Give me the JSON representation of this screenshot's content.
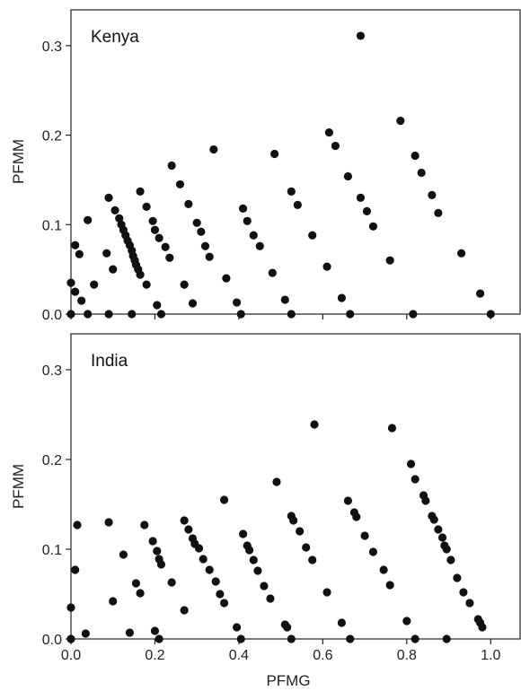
{
  "chart_data": [
    {
      "type": "scatter",
      "title": "Kenya",
      "xlabel": "",
      "ylabel": "PFMM",
      "xlim": [
        0,
        1.07
      ],
      "ylim": [
        0,
        0.34
      ],
      "x_ticks": [
        0.0,
        0.2,
        0.4,
        0.6,
        0.8,
        1.0
      ],
      "y_ticks": [
        "0.0",
        "0.1",
        "0.2",
        "0.3"
      ],
      "y_tick_values": [
        0.0,
        0.1,
        0.2,
        0.3
      ],
      "grid": false,
      "marker_color": "#111111",
      "series": [
        {
          "points": [
            [
              0.0,
              0.035
            ],
            [
              0.0,
              0.0
            ],
            [
              0.01,
              0.077
            ],
            [
              0.01,
              0.025
            ],
            [
              0.02,
              0.067
            ],
            [
              0.025,
              0.015
            ],
            [
              0.04,
              0.105
            ],
            [
              0.04,
              0.0
            ],
            [
              0.055,
              0.033
            ],
            [
              0.085,
              0.068
            ],
            [
              0.09,
              0.13
            ],
            [
              0.09,
              0.0
            ],
            [
              0.1,
              0.05
            ],
            [
              0.105,
              0.116
            ],
            [
              0.115,
              0.107
            ],
            [
              0.12,
              0.1
            ],
            [
              0.125,
              0.094
            ],
            [
              0.13,
              0.088
            ],
            [
              0.135,
              0.082
            ],
            [
              0.14,
              0.077
            ],
            [
              0.145,
              0.071
            ],
            [
              0.148,
              0.065
            ],
            [
              0.152,
              0.06
            ],
            [
              0.155,
              0.055
            ],
            [
              0.16,
              0.05
            ],
            [
              0.165,
              0.044
            ],
            [
              0.145,
              0.0
            ],
            [
              0.165,
              0.137
            ],
            [
              0.18,
              0.12
            ],
            [
              0.18,
              0.033
            ],
            [
              0.195,
              0.104
            ],
            [
              0.2,
              0.094
            ],
            [
              0.205,
              0.01
            ],
            [
              0.21,
              0.085
            ],
            [
              0.215,
              0.0
            ],
            [
              0.225,
              0.075
            ],
            [
              0.235,
              0.063
            ],
            [
              0.24,
              0.166
            ],
            [
              0.26,
              0.145
            ],
            [
              0.27,
              0.033
            ],
            [
              0.28,
              0.123
            ],
            [
              0.29,
              0.012
            ],
            [
              0.3,
              0.102
            ],
            [
              0.31,
              0.092
            ],
            [
              0.32,
              0.076
            ],
            [
              0.33,
              0.064
            ],
            [
              0.34,
              0.184
            ],
            [
              0.37,
              0.04
            ],
            [
              0.395,
              0.013
            ],
            [
              0.405,
              0.0
            ],
            [
              0.41,
              0.118
            ],
            [
              0.42,
              0.104
            ],
            [
              0.435,
              0.088
            ],
            [
              0.45,
              0.076
            ],
            [
              0.48,
              0.046
            ],
            [
              0.485,
              0.179
            ],
            [
              0.51,
              0.016
            ],
            [
              0.525,
              0.137
            ],
            [
              0.525,
              0.0
            ],
            [
              0.54,
              0.122
            ],
            [
              0.575,
              0.088
            ],
            [
              0.61,
              0.053
            ],
            [
              0.615,
              0.203
            ],
            [
              0.63,
              0.188
            ],
            [
              0.645,
              0.018
            ],
            [
              0.66,
              0.154
            ],
            [
              0.665,
              0.0
            ],
            [
              0.69,
              0.311
            ],
            [
              0.69,
              0.13
            ],
            [
              0.705,
              0.115
            ],
            [
              0.72,
              0.098
            ],
            [
              0.76,
              0.06
            ],
            [
              0.785,
              0.216
            ],
            [
              0.815,
              0.0
            ],
            [
              0.82,
              0.177
            ],
            [
              0.835,
              0.158
            ],
            [
              0.86,
              0.133
            ],
            [
              0.875,
              0.113
            ],
            [
              0.93,
              0.068
            ],
            [
              0.975,
              0.023
            ],
            [
              1.0,
              0.0
            ]
          ]
        }
      ]
    },
    {
      "type": "scatter",
      "title": "India",
      "xlabel": "PFMG",
      "ylabel": "PFMM",
      "xlim": [
        0,
        1.07
      ],
      "ylim": [
        0,
        0.34
      ],
      "x_ticks": [
        0.0,
        0.2,
        0.4,
        0.6,
        0.8,
        1.0
      ],
      "x_tick_labels": [
        "0.0",
        "0.2",
        "0.4",
        "0.6",
        "0.8",
        "1.0"
      ],
      "y_ticks": [
        "0.0",
        "0.1",
        "0.2",
        "0.3"
      ],
      "y_tick_values": [
        0.0,
        0.1,
        0.2,
        0.3
      ],
      "grid": false,
      "marker_color": "#111111",
      "series": [
        {
          "points": [
            [
              0.0,
              0.035
            ],
            [
              0.0,
              0.0
            ],
            [
              0.01,
              0.077
            ],
            [
              0.015,
              0.127
            ],
            [
              0.035,
              0.006
            ],
            [
              0.09,
              0.13
            ],
            [
              0.1,
              0.042
            ],
            [
              0.125,
              0.094
            ],
            [
              0.14,
              0.007
            ],
            [
              0.155,
              0.062
            ],
            [
              0.165,
              0.051
            ],
            [
              0.175,
              0.127
            ],
            [
              0.195,
              0.109
            ],
            [
              0.2,
              0.009
            ],
            [
              0.205,
              0.098
            ],
            [
              0.21,
              0.089
            ],
            [
              0.21,
              0.0
            ],
            [
              0.215,
              0.083
            ],
            [
              0.24,
              0.063
            ],
            [
              0.27,
              0.132
            ],
            [
              0.27,
              0.032
            ],
            [
              0.28,
              0.122
            ],
            [
              0.29,
              0.112
            ],
            [
              0.295,
              0.106
            ],
            [
              0.305,
              0.101
            ],
            [
              0.315,
              0.089
            ],
            [
              0.33,
              0.077
            ],
            [
              0.345,
              0.064
            ],
            [
              0.355,
              0.05
            ],
            [
              0.365,
              0.155
            ],
            [
              0.365,
              0.04
            ],
            [
              0.395,
              0.013
            ],
            [
              0.405,
              0.0
            ],
            [
              0.41,
              0.117
            ],
            [
              0.42,
              0.104
            ],
            [
              0.425,
              0.099
            ],
            [
              0.435,
              0.088
            ],
            [
              0.445,
              0.076
            ],
            [
              0.46,
              0.059
            ],
            [
              0.475,
              0.045
            ],
            [
              0.49,
              0.175
            ],
            [
              0.51,
              0.016
            ],
            [
              0.515,
              0.013
            ],
            [
              0.525,
              0.137
            ],
            [
              0.525,
              0.0
            ],
            [
              0.53,
              0.132
            ],
            [
              0.545,
              0.12
            ],
            [
              0.56,
              0.102
            ],
            [
              0.575,
              0.088
            ],
            [
              0.58,
              0.239
            ],
            [
              0.61,
              0.052
            ],
            [
              0.645,
              0.018
            ],
            [
              0.66,
              0.154
            ],
            [
              0.665,
              0.0
            ],
            [
              0.675,
              0.141
            ],
            [
              0.68,
              0.136
            ],
            [
              0.7,
              0.115
            ],
            [
              0.72,
              0.097
            ],
            [
              0.745,
              0.077
            ],
            [
              0.76,
              0.06
            ],
            [
              0.765,
              0.235
            ],
            [
              0.8,
              0.02
            ],
            [
              0.81,
              0.195
            ],
            [
              0.82,
              0.0
            ],
            [
              0.82,
              0.178
            ],
            [
              0.84,
              0.16
            ],
            [
              0.845,
              0.154
            ],
            [
              0.86,
              0.137
            ],
            [
              0.865,
              0.133
            ],
            [
              0.875,
              0.122
            ],
            [
              0.885,
              0.113
            ],
            [
              0.89,
              0.104
            ],
            [
              0.895,
              0.1
            ],
            [
              0.895,
              0.0
            ],
            [
              0.905,
              0.088
            ],
            [
              0.92,
              0.068
            ],
            [
              0.935,
              0.052
            ],
            [
              0.95,
              0.04
            ],
            [
              0.97,
              0.022
            ],
            [
              0.975,
              0.018
            ],
            [
              0.98,
              0.013
            ]
          ]
        }
      ]
    }
  ]
}
